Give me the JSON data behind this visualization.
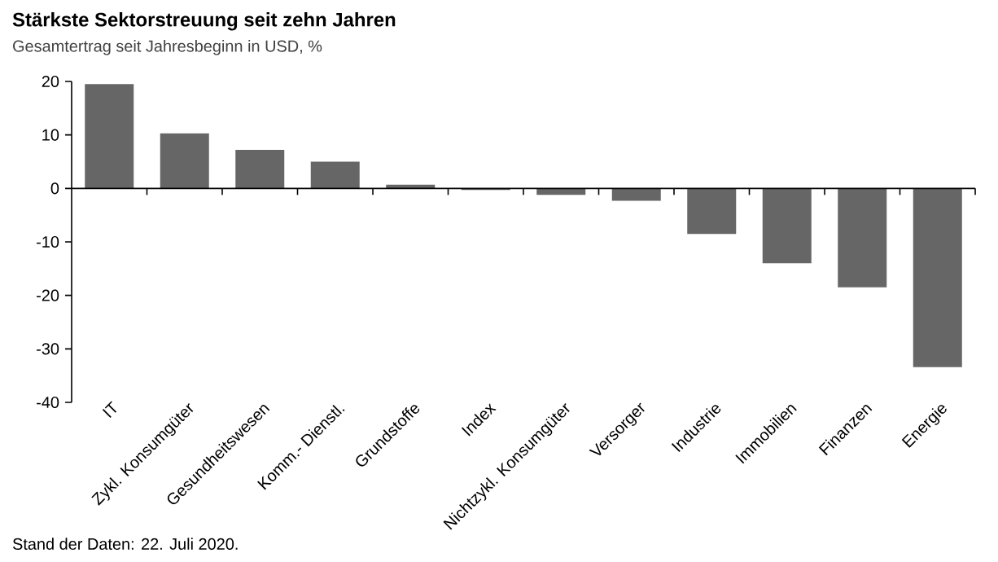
{
  "chart_data": {
    "type": "bar",
    "title": "Stärkste Sektorstreuung seit zehn Jahren",
    "subtitle": "Gesamtertrag seit Jahresbeginn in USD, %",
    "categories": [
      "IT",
      "Zykl. Konsumgüter",
      "Gesundheitswesen",
      "Komm.- Dienstl.",
      "Grundstoffe",
      "Index",
      "Nichtzykl. Konsumgüter",
      "Versorger",
      "Industrie",
      "Immobilien",
      "Finanzen",
      "Energie"
    ],
    "values": [
      19.5,
      10.3,
      7.2,
      5.0,
      0.7,
      -0.3,
      -1.2,
      -2.3,
      -8.5,
      -14.0,
      -18.5,
      -33.4
    ],
    "color": "#666666",
    "ylim": [
      -40,
      20
    ],
    "yticks": [
      -40,
      -30,
      -20,
      -10,
      0,
      10,
      20
    ],
    "annotations": [
      "Stand der Daten: 22. Juli 2020."
    ]
  }
}
